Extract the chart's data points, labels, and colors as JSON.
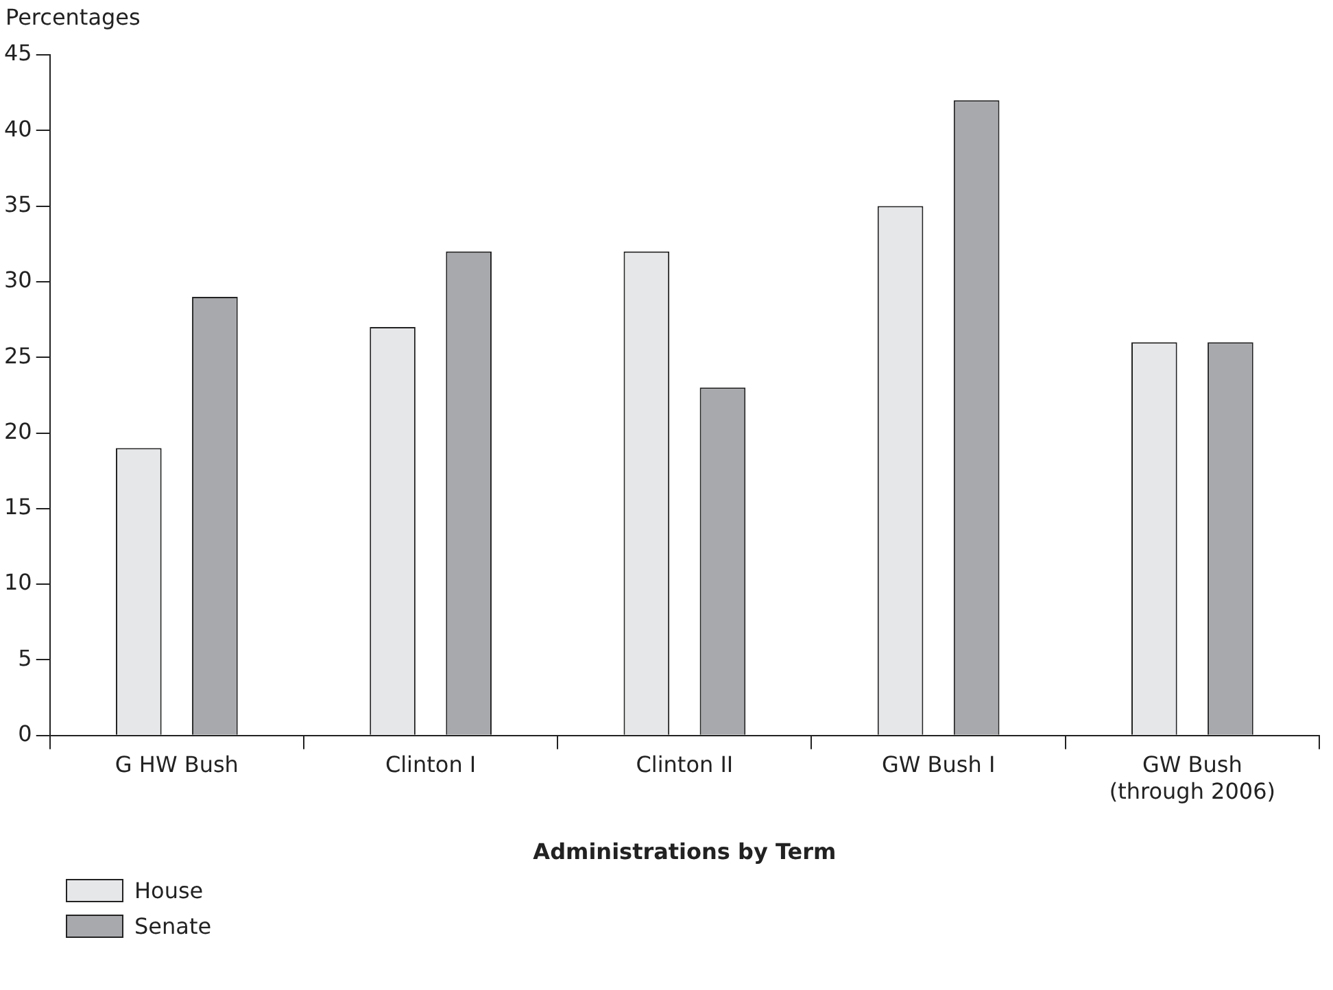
{
  "chart_data": {
    "type": "bar",
    "ylabel": "Percentages",
    "xlabel": "Administrations by Term",
    "categories": [
      "G HW Bush",
      "Clinton I",
      "Clinton II",
      "GW Bush I",
      "GW Bush\n(through 2006)"
    ],
    "series": [
      {
        "name": "House",
        "color": "#e6e7e9",
        "values": [
          19,
          27,
          32,
          35,
          26
        ]
      },
      {
        "name": "Senate",
        "color": "#a7a9ac",
        "values": [
          29,
          32,
          23,
          42,
          26
        ]
      }
    ],
    "ylim": [
      0,
      45
    ],
    "yticks": [
      0,
      5,
      10,
      15,
      20,
      25,
      30,
      35,
      40,
      45
    ],
    "grid": false,
    "legend": "bottom left"
  }
}
